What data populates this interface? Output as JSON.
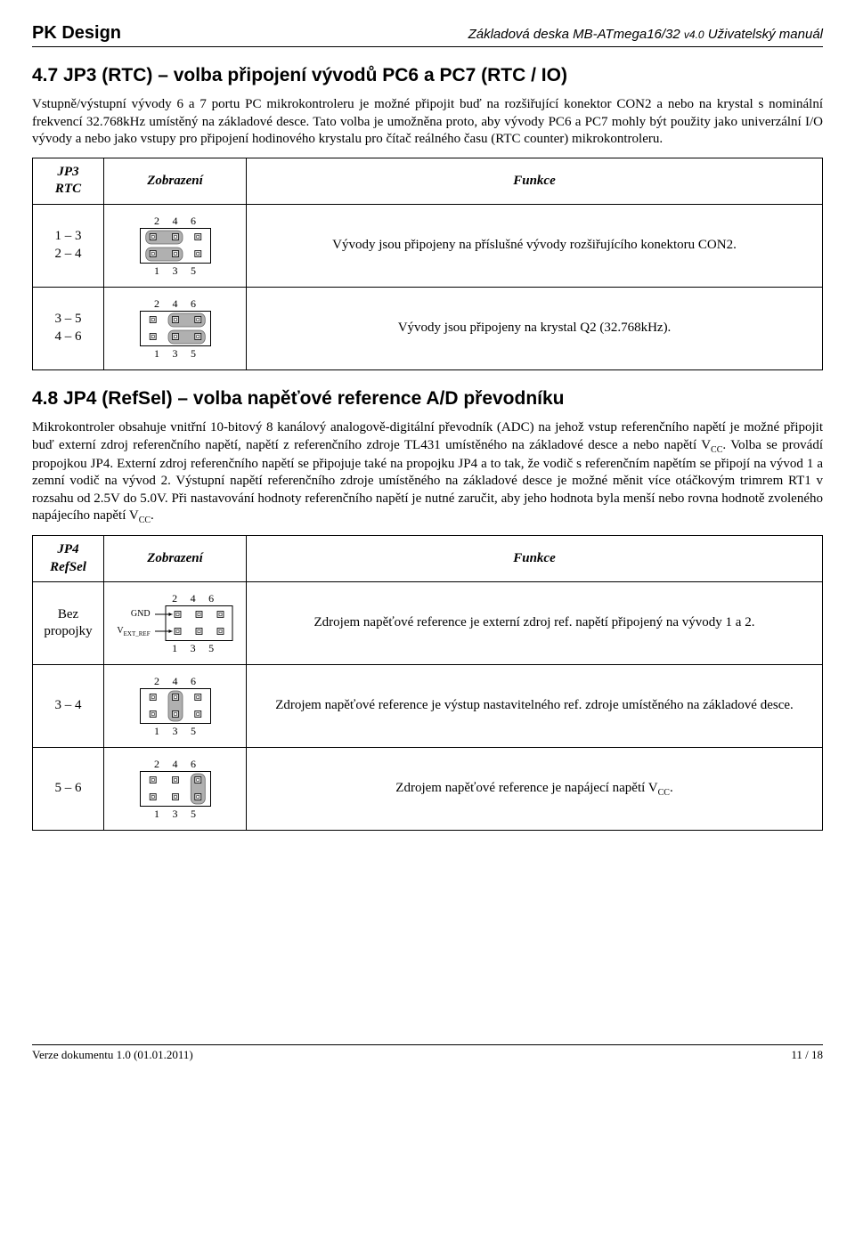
{
  "header": {
    "brand": "PK Design",
    "product": "Základová deska MB-ATmega16/32",
    "version_small": "v4.0",
    "manual": "Uživatelský manuál"
  },
  "section47": {
    "title": "4.7  JP3 (RTC) – volba připojení vývodů PC6 a PC7 (RTC / IO)",
    "para": "Vstupně/výstupní vývody 6 a 7 portu PC mikrokontroleru je možné připojit buď na rozšiřující konektor CON2 a nebo na krystal s nominální frekvencí 32.768kHz umístěný na základové desce. Tato volba je umožněna proto, aby vývody PC6 a PC7 mohly být použity jako univerzální I/O vývody a nebo jako vstupy pro připojení hodinového krystalu pro čítač reálného času (RTC counter) mikrokontroleru."
  },
  "table1": {
    "col1_l1": "JP3",
    "col1_l2": "RTC",
    "col2": "Zobrazení",
    "col3": "Funkce",
    "row1": {
      "jp": "1 – 3\n2 – 4",
      "fn": "Vývody jsou připojeny na příslušné vývody rozšiřujícího konektoru CON2.",
      "diagram": {
        "type": "jumper-left",
        "top": [
          "2",
          "4",
          "6"
        ],
        "bot": [
          "1",
          "3",
          "5"
        ]
      }
    },
    "row2": {
      "jp": "3 – 5\n4 – 6",
      "fn": "Vývody jsou připojeny na krystal Q2 (32.768kHz).",
      "diagram": {
        "type": "jumper-right",
        "top": [
          "2",
          "4",
          "6"
        ],
        "bot": [
          "1",
          "3",
          "5"
        ]
      }
    }
  },
  "section48": {
    "title": "4.8  JP4 (RefSel) – volba napěťové reference A/D převodníku",
    "para": "Mikrokontroler obsahuje vnitřní 10-bitový 8 kanálový analogově-digitální převodník (ADC) na jehož vstup referenčního napětí je možné připojit buď externí zdroj referenčního napětí, napětí z referenčního zdroje TL431 umístěného na základové desce a nebo napětí V",
    "para_cc1": "CC",
    "para2": ". Volba se provádí propojkou JP4. Externí zdroj referenčního napětí se připojuje také na propojku JP4 a to tak, že vodič s referenčním napětím se připojí na vývod 1 a zemní vodič na vývod 2. Výstupní napětí referenčního zdroje umístěného na základové desce je možné měnit více otáčkovým trimrem RT1 v rozsahu od 2.5V do 5.0V. Při nastavování hodnoty referenčního napětí je nutné zaručit, aby jeho hodnota byla menší nebo rovna hodnotě zvoleného napájecího napětí V",
    "para_cc2": "CC",
    "para3": "."
  },
  "table2": {
    "col1_l1": "JP4",
    "col1_l2": "RefSel",
    "col2": "Zobrazení",
    "col3": "Funkce",
    "row1": {
      "jp": "Bez propojky",
      "fn": "Zdrojem napěťové reference je externí zdroj ref. napětí připojený na vývody 1 a 2.",
      "diagram": {
        "type": "open-labeled",
        "top": [
          "2",
          "4",
          "6"
        ],
        "bot": [
          "1",
          "3",
          "5"
        ],
        "label_top": "GND",
        "label_bot": "V",
        "label_bot_sub": "EXT_REF"
      }
    },
    "row2": {
      "jp": "3 – 4",
      "fn": "Zdrojem napěťové reference je výstup nastavitelného ref. zdroje umístěného na základové desce.",
      "diagram": {
        "type": "jumper-mid",
        "top": [
          "2",
          "4",
          "6"
        ],
        "bot": [
          "1",
          "3",
          "5"
        ]
      }
    },
    "row3": {
      "jp": "5 – 6",
      "fn_pre": "Zdrojem napěťové reference je napájecí napětí V",
      "fn_cc": "CC",
      "fn_post": ".",
      "diagram": {
        "type": "jumper-col3",
        "top": [
          "2",
          "4",
          "6"
        ],
        "bot": [
          "1",
          "3",
          "5"
        ]
      }
    }
  },
  "footer": {
    "left": "Verze dokumentu 1.0 (01.01.2011)",
    "right": "11 / 18"
  },
  "svg": {
    "pin_fill": "#e0e0e0",
    "pin_stroke": "#000000",
    "jumper_fill": "#b0b0b0",
    "jumper_stroke": "#666666",
    "box_stroke": "#000000"
  }
}
